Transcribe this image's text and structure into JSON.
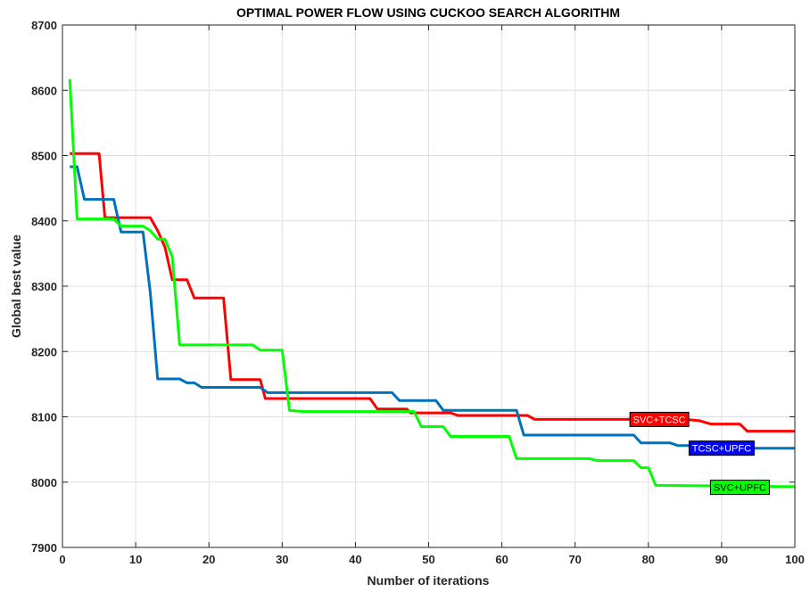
{
  "chart_data": {
    "type": "line",
    "title": "OPTIMAL POWER FLOW USING CUCKOO SEARCH ALGORITHM",
    "xlabel": "Number of iterations",
    "ylabel": "Global best value",
    "xlim": [
      0,
      100
    ],
    "ylim": [
      7900,
      8700
    ],
    "xticks": [
      0,
      10,
      20,
      30,
      40,
      50,
      60,
      70,
      80,
      90,
      100
    ],
    "yticks": [
      7900,
      8000,
      8100,
      8200,
      8300,
      8400,
      8500,
      8600,
      8700
    ],
    "grid": true,
    "series": [
      {
        "name": "SVC+TCSC",
        "color": "#ff0000",
        "points": [
          [
            1,
            8503
          ],
          [
            5,
            8503
          ],
          [
            5.8,
            8405
          ],
          [
            12,
            8405
          ],
          [
            13,
            8385
          ],
          [
            14,
            8360
          ],
          [
            15,
            8310
          ],
          [
            17,
            8310
          ],
          [
            18,
            8282
          ],
          [
            22,
            8282
          ],
          [
            23,
            8157
          ],
          [
            27,
            8157
          ],
          [
            27.7,
            8128
          ],
          [
            42,
            8128
          ],
          [
            43,
            8112
          ],
          [
            47,
            8112
          ],
          [
            47.5,
            8106
          ],
          [
            53,
            8106
          ],
          [
            54,
            8102
          ],
          [
            63.5,
            8102
          ],
          [
            64.5,
            8096
          ],
          [
            85,
            8096
          ],
          [
            87,
            8094
          ],
          [
            88.5,
            8089
          ],
          [
            92.5,
            8089
          ],
          [
            93.5,
            8078
          ],
          [
            100,
            8078
          ]
        ]
      },
      {
        "name": "TCSC+UPFC",
        "color": "#0072bd",
        "points": [
          [
            1,
            8483
          ],
          [
            2,
            8483
          ],
          [
            3,
            8433
          ],
          [
            7,
            8433
          ],
          [
            8,
            8383
          ],
          [
            11,
            8383
          ],
          [
            12,
            8290
          ],
          [
            13,
            8158
          ],
          [
            16,
            8158
          ],
          [
            17,
            8152
          ],
          [
            18,
            8152
          ],
          [
            19,
            8145
          ],
          [
            27,
            8145
          ],
          [
            28,
            8137
          ],
          [
            45,
            8137
          ],
          [
            46,
            8125
          ],
          [
            51,
            8125
          ],
          [
            52,
            8110
          ],
          [
            62,
            8110
          ],
          [
            63,
            8072
          ],
          [
            78,
            8072
          ],
          [
            79,
            8060
          ],
          [
            83,
            8060
          ],
          [
            84,
            8056
          ],
          [
            92,
            8056
          ],
          [
            94,
            8052
          ],
          [
            100,
            8052
          ]
        ]
      },
      {
        "name": "SVC+UPFC",
        "color": "#00ff00",
        "points": [
          [
            1,
            8617
          ],
          [
            2,
            8403
          ],
          [
            7,
            8403
          ],
          [
            8,
            8392
          ],
          [
            11,
            8392
          ],
          [
            12,
            8385
          ],
          [
            13,
            8372
          ],
          [
            14,
            8372
          ],
          [
            15,
            8345
          ],
          [
            16,
            8210
          ],
          [
            26,
            8210
          ],
          [
            27,
            8202
          ],
          [
            30,
            8202
          ],
          [
            31,
            8110
          ],
          [
            33,
            8108
          ],
          [
            48,
            8108
          ],
          [
            49,
            8085
          ],
          [
            52,
            8085
          ],
          [
            53,
            8070
          ],
          [
            61,
            8070
          ],
          [
            62,
            8036
          ],
          [
            72,
            8036
          ],
          [
            73,
            8033
          ],
          [
            78,
            8033
          ],
          [
            79,
            8022
          ],
          [
            80,
            8022
          ],
          [
            81,
            7995
          ],
          [
            100,
            7993
          ]
        ]
      }
    ],
    "annotations": [
      {
        "text": "SVC+TCSC",
        "x": 81.5,
        "y": 8096,
        "bg": "#ff0000",
        "fg": "#ffffff"
      },
      {
        "text": "TCSC+UPFC",
        "x": 90,
        "y": 8052,
        "bg": "#0000ff",
        "fg": "#ffffff"
      },
      {
        "text": "SVC+UPFC",
        "x": 92.5,
        "y": 7992,
        "bg": "#00ff00",
        "fg": "#000000"
      }
    ]
  }
}
